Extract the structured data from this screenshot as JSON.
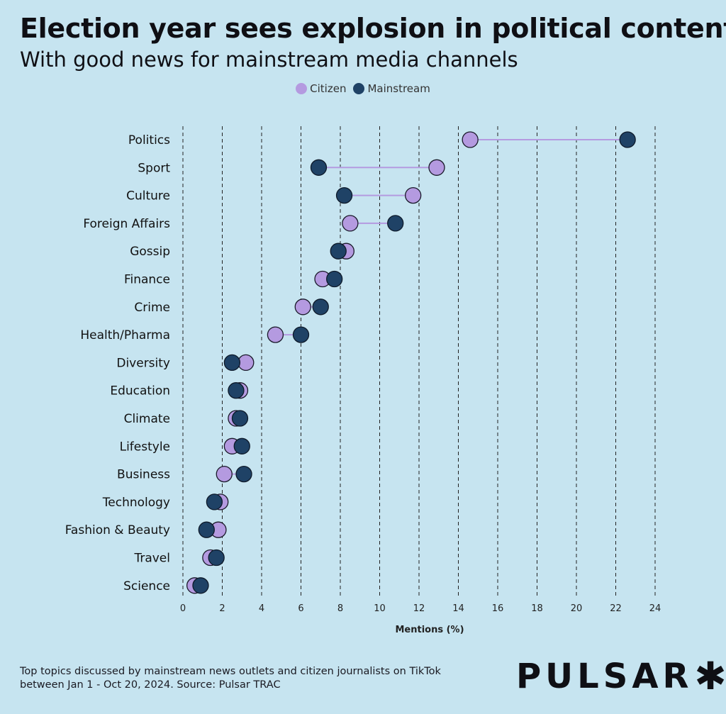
{
  "chart_data": {
    "type": "dot-plot",
    "title": "Election year sees explosion in political content",
    "subtitle": "With good news for mainstream media channels",
    "xlabel": "Mentions (%)",
    "xlim": [
      0,
      24
    ],
    "xticks": [
      "0",
      "2",
      "4",
      "6",
      "8",
      "10",
      "12",
      "14",
      "16",
      "18",
      "20",
      "22",
      "24"
    ],
    "grid": "vertical dashed",
    "legend_position": "top-center",
    "categories": [
      "Politics",
      "Sport",
      "Culture",
      "Foreign Affairs",
      "Gossip",
      "Finance",
      "Crime",
      "Health/Pharma",
      "Diversity",
      "Education",
      "Climate",
      "Lifestyle",
      "Business",
      "Technology",
      "Fashion & Beauty",
      "Travel",
      "Science"
    ],
    "series": [
      {
        "name": "Citizen",
        "color": "#b49ae0",
        "values": [
          14.6,
          12.9,
          11.7,
          8.5,
          8.3,
          7.1,
          6.1,
          4.7,
          3.2,
          2.9,
          2.7,
          2.5,
          2.1,
          1.9,
          1.8,
          1.4,
          0.6
        ]
      },
      {
        "name": "Mainstream",
        "color": "#1f4266",
        "values": [
          22.6,
          6.9,
          8.2,
          10.8,
          7.9,
          7.7,
          7.0,
          6.0,
          2.5,
          2.7,
          2.9,
          3.0,
          3.1,
          1.6,
          1.2,
          1.7,
          0.9
        ]
      }
    ]
  },
  "footnote": {
    "line1": "Top topics discussed by mainstream news outlets and citizen journalists on TikTok",
    "line2": "between Jan 1 - Oct 20, 2024. Source: Pulsar TRAC"
  },
  "logo": {
    "text": "PULSAR",
    "mark": "✱"
  }
}
